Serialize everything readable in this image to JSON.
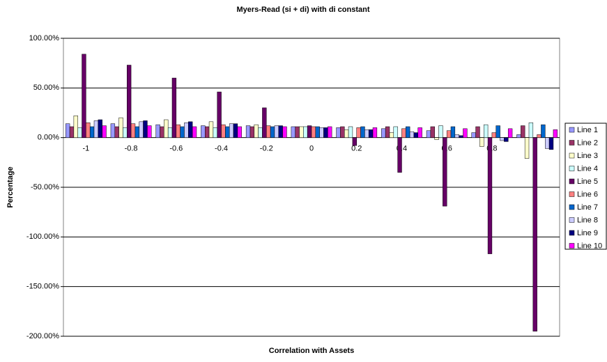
{
  "chart_data": {
    "type": "bar",
    "title": "Myers-Read (si + di) with di constant",
    "x_label": "Correlation with Assets",
    "y_label": "Percentage",
    "categories": [
      "-1",
      "-0.8",
      "-0.6",
      "-0.4",
      "-0.2",
      "0",
      "0.2",
      "0.4",
      "0.6",
      "0.8",
      null
    ],
    "series": [
      {
        "name": "Line 1",
        "color": "#9999ff",
        "values": [
          14,
          14,
          13,
          12,
          12,
          11,
          10,
          9,
          7,
          5,
          3
        ]
      },
      {
        "name": "Line 2",
        "color": "#993366",
        "values": [
          11,
          11,
          11,
          11,
          11,
          11,
          11,
          11,
          11,
          11,
          12
        ]
      },
      {
        "name": "Line 3",
        "color": "#ffffcc",
        "values": [
          22,
          20,
          18,
          16,
          13,
          11,
          8,
          5,
          -2,
          -9,
          -21
        ]
      },
      {
        "name": "Line 4",
        "color": "#ccffff",
        "values": [
          10,
          10,
          10,
          10,
          10,
          11,
          11,
          11,
          12,
          13,
          15
        ]
      },
      {
        "name": "Line 5",
        "color": "#660066",
        "values": [
          84,
          73,
          60,
          46,
          30,
          12,
          -8,
          -35,
          -69,
          -117,
          -195
        ]
      },
      {
        "name": "Line 6",
        "color": "#ff8080",
        "values": [
          15,
          14,
          13,
          13,
          12,
          11,
          10,
          9,
          7,
          5,
          3
        ]
      },
      {
        "name": "Line 7",
        "color": "#0066cc",
        "values": [
          11,
          11,
          11,
          11,
          11,
          11,
          11,
          11,
          11,
          12,
          13
        ]
      },
      {
        "name": "Line 8",
        "color": "#ccccff",
        "values": [
          17,
          16,
          15,
          14,
          12,
          10,
          8,
          6,
          3,
          -3,
          -11
        ]
      },
      {
        "name": "Line 9",
        "color": "#000080",
        "values": [
          18,
          17,
          16,
          14,
          12,
          10,
          8,
          5,
          2,
          -4,
          -12
        ]
      },
      {
        "name": "Line 10",
        "color": "#ff00ff",
        "values": [
          12,
          12,
          11,
          11,
          11,
          11,
          10,
          10,
          9,
          9,
          8
        ]
      }
    ],
    "ylim": [
      -200,
      100
    ],
    "yticks": [
      {
        "value": -200,
        "label": "-200.00%"
      },
      {
        "value": -150,
        "label": "-150.00%"
      },
      {
        "value": -100,
        "label": "-100.00%"
      },
      {
        "value": -50,
        "label": "-50.00%"
      },
      {
        "value": 0,
        "label": "0.00%"
      },
      {
        "value": 50,
        "label": "50.00%"
      },
      {
        "value": 100,
        "label": "100.00%"
      }
    ],
    "grid": true,
    "legend": "right"
  }
}
